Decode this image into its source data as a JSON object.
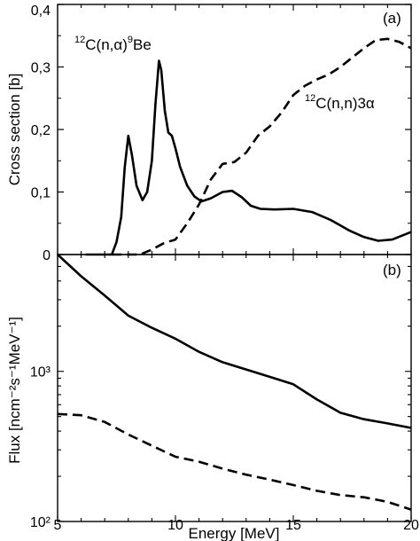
{
  "chart_data": [
    {
      "panel": "(a)",
      "type": "line",
      "ylabel": "Cross section [b]",
      "xlim": [
        5,
        20
      ],
      "ylim": [
        0,
        0.4
      ],
      "y_ticks": [
        "0",
        "0,1",
        "0,2",
        "0,3",
        "0,4"
      ],
      "annotations": [
        {
          "pre": "12",
          "main": "C(n,α)",
          "sup": "9",
          "post": "Be"
        },
        {
          "pre": "12",
          "main": "C(n,n)3α",
          "sup": "",
          "post": ""
        }
      ],
      "series": [
        {
          "style": "solid",
          "x": [
            6.2,
            7.3,
            7.5,
            7.7,
            7.85,
            8.0,
            8.15,
            8.35,
            8.6,
            8.8,
            9.0,
            9.15,
            9.3,
            9.4,
            9.55,
            9.7,
            9.85,
            10.0,
            10.2,
            10.5,
            10.8,
            11.1,
            11.5,
            12.0,
            12.4,
            12.8,
            13.2,
            13.6,
            14.2,
            15.0,
            15.8,
            16.6,
            17.4,
            18.0,
            18.6,
            19.2,
            20.0
          ],
          "y": [
            0,
            0,
            0.02,
            0.06,
            0.14,
            0.19,
            0.16,
            0.11,
            0.087,
            0.1,
            0.15,
            0.24,
            0.31,
            0.295,
            0.23,
            0.195,
            0.19,
            0.17,
            0.14,
            0.11,
            0.093,
            0.085,
            0.09,
            0.1,
            0.102,
            0.092,
            0.078,
            0.073,
            0.072,
            0.073,
            0.068,
            0.055,
            0.038,
            0.028,
            0.022,
            0.024,
            0.036
          ]
        },
        {
          "style": "dashed",
          "x": [
            7.3,
            8.5,
            9.0,
            9.5,
            10.0,
            10.5,
            11.0,
            11.5,
            12.0,
            12.5,
            13.0,
            13.5,
            14.0,
            14.5,
            15.0,
            15.5,
            16.0,
            16.5,
            17.0,
            17.5,
            18.0,
            18.5,
            19.0,
            19.5,
            20.0
          ],
          "y": [
            0,
            0,
            0.008,
            0.018,
            0.024,
            0.05,
            0.08,
            0.12,
            0.145,
            0.148,
            0.163,
            0.19,
            0.205,
            0.227,
            0.255,
            0.27,
            0.28,
            0.288,
            0.3,
            0.315,
            0.33,
            0.343,
            0.345,
            0.34,
            0.33
          ]
        }
      ]
    },
    {
      "panel": "(b)",
      "type": "line",
      "ylabel": "Flux [ncm⁻²s⁻¹MeV⁻¹]",
      "xlabel": "Energy [MeV]",
      "xlim": [
        5,
        20
      ],
      "x_ticks": [
        "5",
        "10",
        "15",
        "20"
      ],
      "y_scale": "log",
      "ylim": [
        100,
        6000
      ],
      "y_ticks": [
        "10³",
        "10²"
      ],
      "series": [
        {
          "style": "solid",
          "x": [
            5.0,
            6.0,
            7.0,
            8.0,
            9.0,
            10.0,
            11.0,
            12.0,
            13.0,
            14.0,
            15.0,
            16.0,
            17.0,
            18.0,
            19.0,
            20.0
          ],
          "y": [
            6000,
            4300,
            3200,
            2350,
            1950,
            1650,
            1350,
            1150,
            1030,
            920,
            820,
            650,
            530,
            480,
            450,
            420
          ]
        },
        {
          "style": "dashed",
          "x": [
            5.0,
            6.0,
            7.0,
            8.0,
            9.0,
            10.0,
            11.0,
            12.0,
            13.0,
            14.0,
            15.0,
            16.0,
            17.0,
            18.0,
            19.0,
            20.0
          ],
          "y": [
            520,
            510,
            460,
            380,
            320,
            270,
            250,
            225,
            205,
            190,
            175,
            160,
            150,
            145,
            135,
            120
          ]
        }
      ]
    }
  ]
}
